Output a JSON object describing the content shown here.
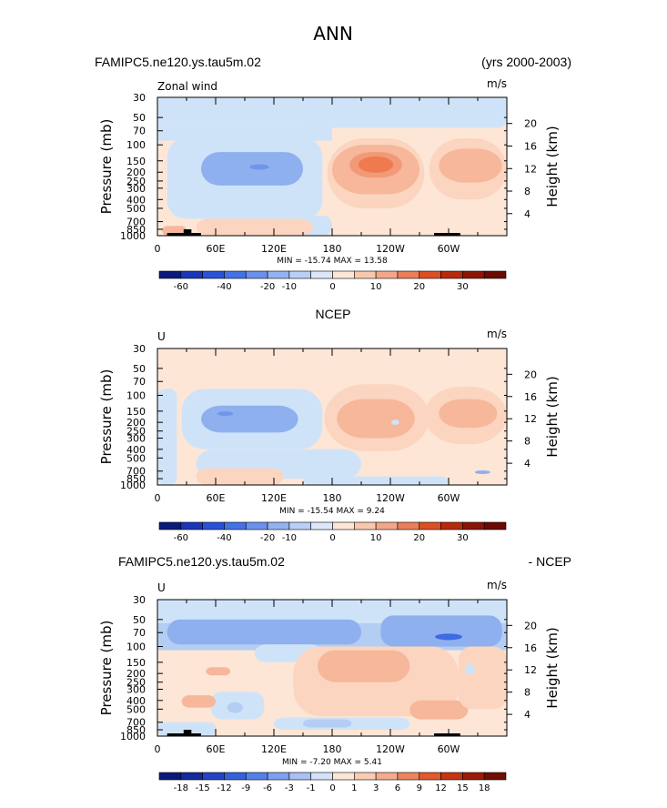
{
  "page_title": "ANN",
  "chart_data": [
    {
      "type": "heatmap",
      "title_left": "FAMIPC5.ne120.ys.tau5m.02",
      "title_right": "(yrs 2000-2003)",
      "subtitle": "Zonal wind",
      "units": "m/s",
      "ylabel": "Pressure (mb)",
      "ylabel_right": "Height (km)",
      "pressure_ticks": [
        "30",
        "50",
        "70",
        "100",
        "150",
        "200",
        "250",
        "300",
        "400",
        "500",
        "700",
        "850",
        "1000"
      ],
      "height_ticks": [
        "4",
        "8",
        "12",
        "16",
        "20"
      ],
      "lon_ticks": [
        "0",
        "60E",
        "120E",
        "180",
        "120W",
        "60W"
      ],
      "stats": "MIN = -15.74   MAX =  13.58",
      "min": -15.74,
      "max": 13.58,
      "colorbar": [
        "-60",
        "-40",
        "-20",
        "-10",
        "0",
        "10",
        "20",
        "30"
      ]
    },
    {
      "type": "heatmap",
      "title_center": "NCEP",
      "subtitle": "U",
      "units": "m/s",
      "ylabel": "Pressure (mb)",
      "ylabel_right": "Height (km)",
      "pressure_ticks": [
        "30",
        "50",
        "70",
        "100",
        "150",
        "200",
        "250",
        "300",
        "400",
        "500",
        "700",
        "850",
        "1000"
      ],
      "height_ticks": [
        "4",
        "8",
        "12",
        "16",
        "20"
      ],
      "lon_ticks": [
        "0",
        "60E",
        "120E",
        "180",
        "120W",
        "60W"
      ],
      "stats": "MIN = -15.54   MAX =  9.24",
      "min": -15.54,
      "max": 9.24,
      "colorbar": [
        "-60",
        "-40",
        "-20",
        "-10",
        "0",
        "10",
        "20",
        "30"
      ]
    },
    {
      "type": "heatmap",
      "title_left": "FAMIPC5.ne120.ys.tau5m.02",
      "title_right": "- NCEP",
      "subtitle": "U",
      "units": "m/s",
      "ylabel": "Pressure (mb)",
      "ylabel_right": "Height (km)",
      "pressure_ticks": [
        "30",
        "50",
        "70",
        "100",
        "150",
        "200",
        "250",
        "300",
        "400",
        "500",
        "700",
        "850",
        "1000"
      ],
      "height_ticks": [
        "4",
        "8",
        "12",
        "16",
        "20"
      ],
      "lon_ticks": [
        "0",
        "60E",
        "120E",
        "180",
        "120W",
        "60W"
      ],
      "stats": "MIN =  -7.20   MAX =  5.41",
      "min": -7.2,
      "max": 5.41,
      "colorbar": [
        "-18",
        "-15",
        "-12",
        "-9",
        "-6",
        "-3",
        "-1",
        "0",
        "1",
        "3",
        "6",
        "9",
        "12",
        "15",
        "18"
      ]
    }
  ]
}
